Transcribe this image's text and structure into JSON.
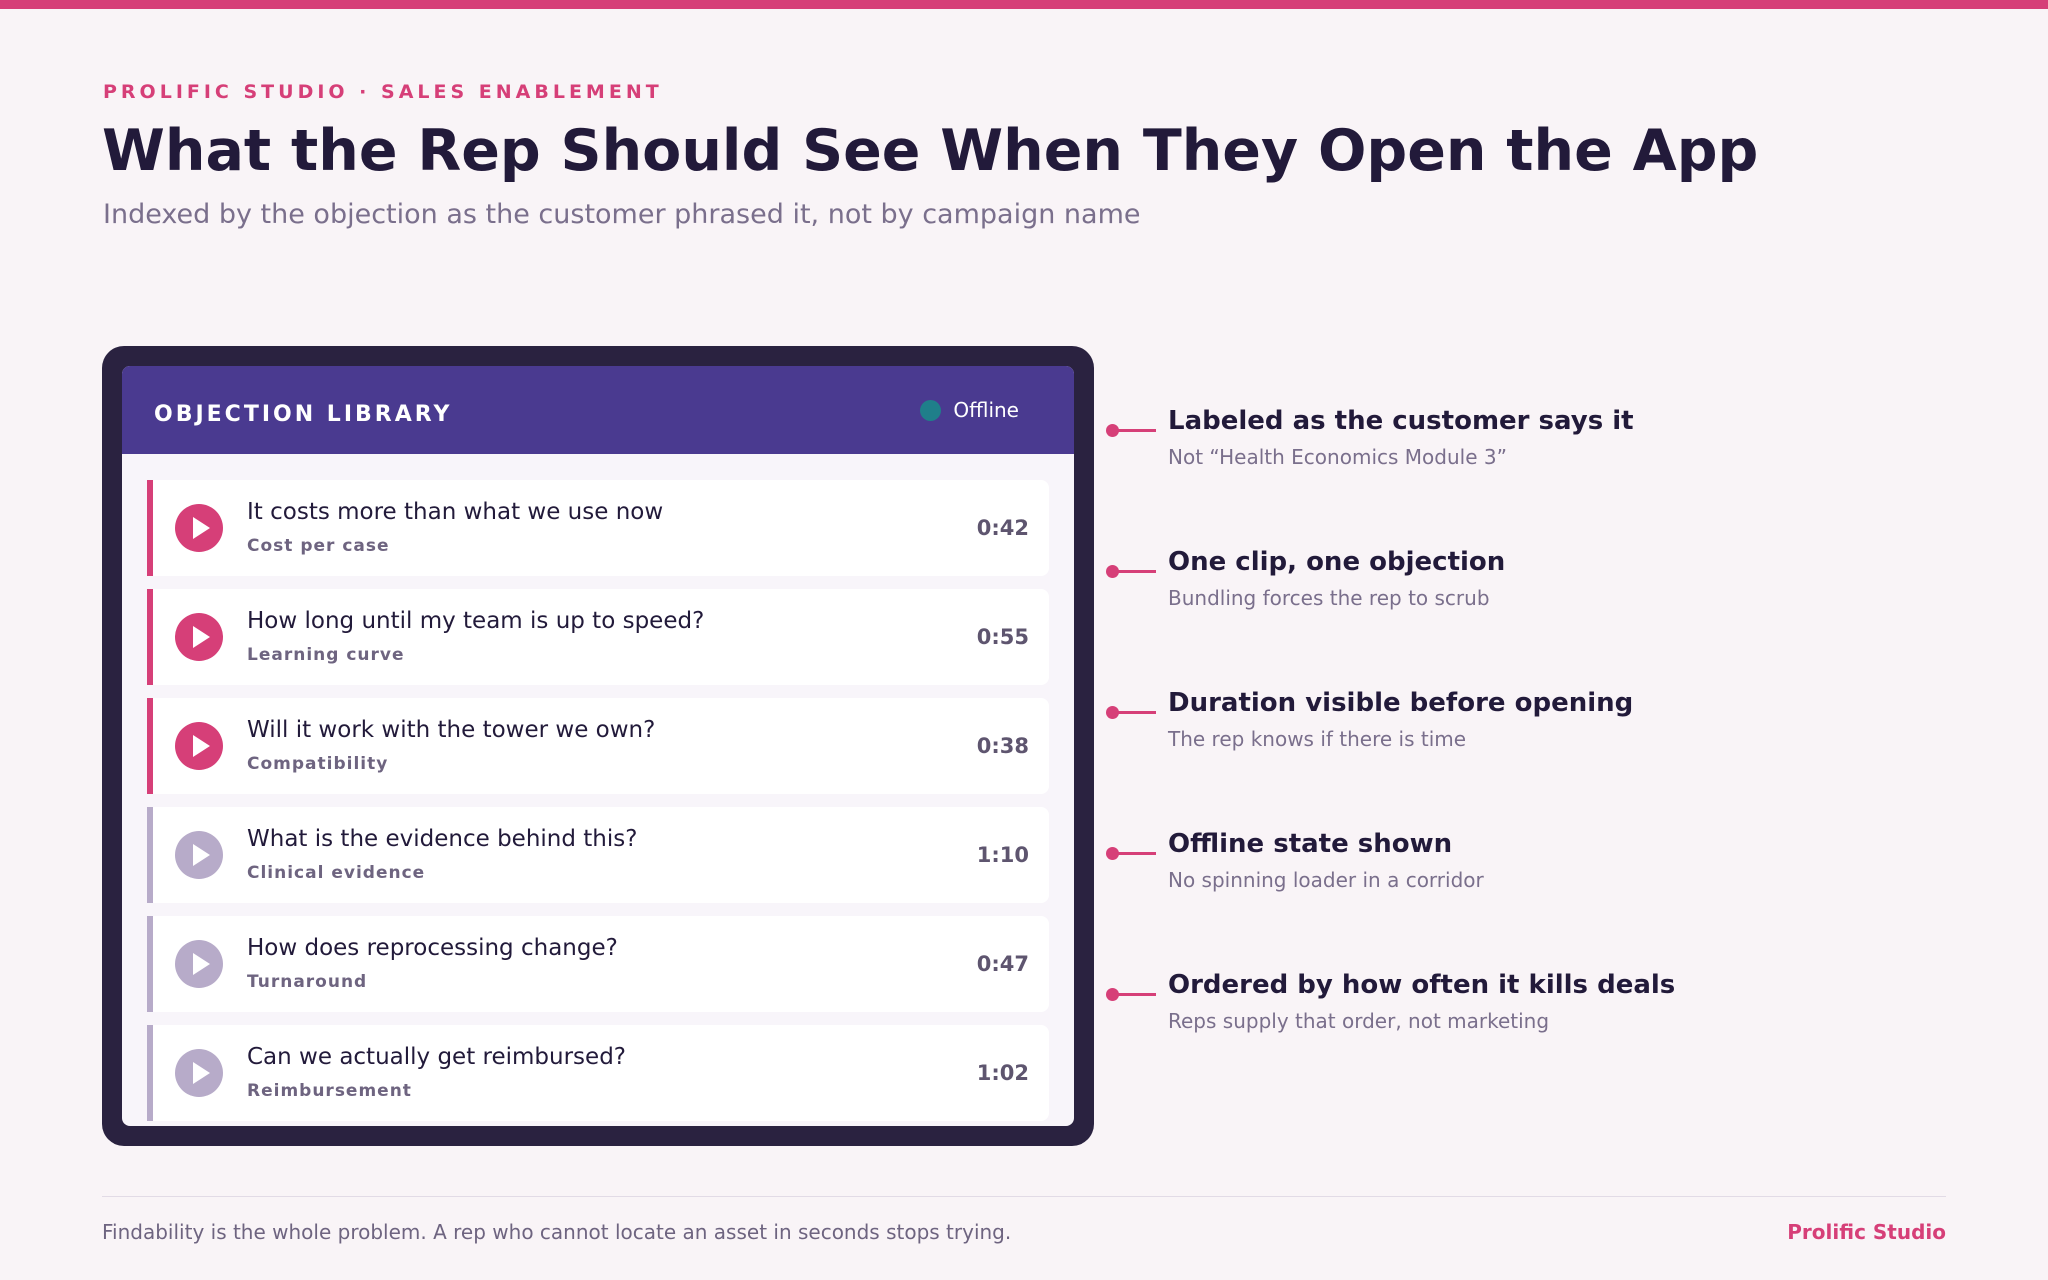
{
  "eyebrow": "PROLIFIC STUDIO · SALES ENABLEMENT",
  "title": "What the Rep Should See When They Open the App",
  "subtitle": "Indexed by the objection as the customer phrased it, not by campaign name",
  "app": {
    "title": "OBJECTION LIBRARY",
    "status": "Offline",
    "items": [
      {
        "question": "It costs more than what we use now",
        "tag": "Cost per case",
        "duration": "0:42"
      },
      {
        "question": "How long until my team is up to speed?",
        "tag": "Learning curve",
        "duration": "0:55"
      },
      {
        "question": "Will it work with the tower we own?",
        "tag": "Compatibility",
        "duration": "0:38"
      },
      {
        "question": "What is the evidence behind this?",
        "tag": "Clinical evidence",
        "duration": "1:10"
      },
      {
        "question": "How does reprocessing change?",
        "tag": "Turnaround",
        "duration": "0:47"
      },
      {
        "question": "Can we actually get reimbursed?",
        "tag": "Reimbursement",
        "duration": "1:02"
      }
    ]
  },
  "annotations": [
    {
      "heading": "Labeled as the customer says it",
      "sub": "Not “Health Economics Module 3”"
    },
    {
      "heading": "One clip, one objection",
      "sub": "Bundling forces the rep to scrub"
    },
    {
      "heading": "Duration visible before opening",
      "sub": "The rep knows if there is time"
    },
    {
      "heading": "Offline state shown",
      "sub": "No spinning loader in a corridor"
    },
    {
      "heading": "Ordered by how often it kills deals",
      "sub": "Reps supply that order, not marketing"
    }
  ],
  "footer": {
    "text": "Findability is the whole problem. A rep who cannot locate an asset in seconds stops trying.",
    "brand": "Prolific Studio"
  },
  "colors": {
    "accent": "#d63f78",
    "header": "#4a3a90",
    "device": "#2a2240",
    "muted": "#b7abc9",
    "status_dot": "#1f7f8a"
  }
}
